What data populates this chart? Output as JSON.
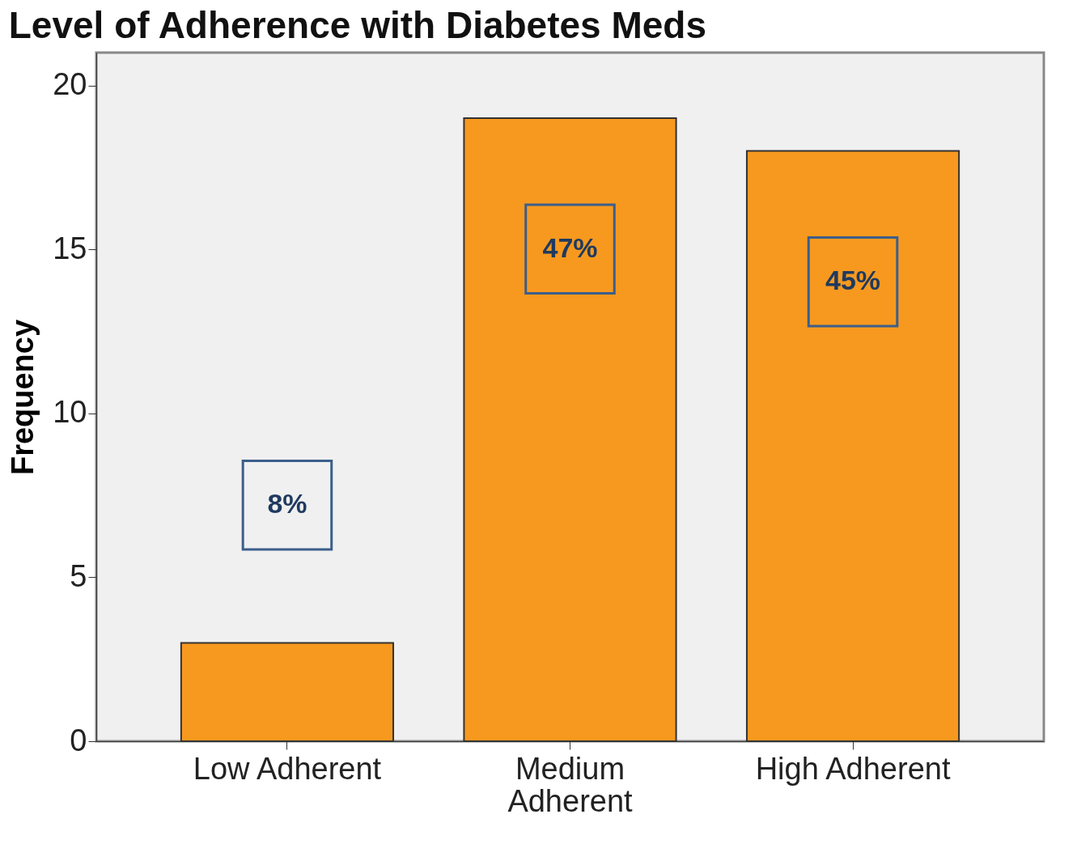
{
  "chart_data": {
    "type": "bar",
    "title": "Level of Adherence with Diabetes Meds",
    "ylabel": "Frequency",
    "categories": [
      "Low Adherent",
      "Medium Adherent",
      "High Adherent"
    ],
    "values": [
      3,
      19,
      18
    ],
    "color": "#f7991f",
    "annotations": [
      "8%",
      "47%",
      "45%"
    ],
    "ylim": [
      0,
      21
    ],
    "yticks": [
      0,
      5,
      10,
      15,
      20
    ],
    "grid": false
  }
}
